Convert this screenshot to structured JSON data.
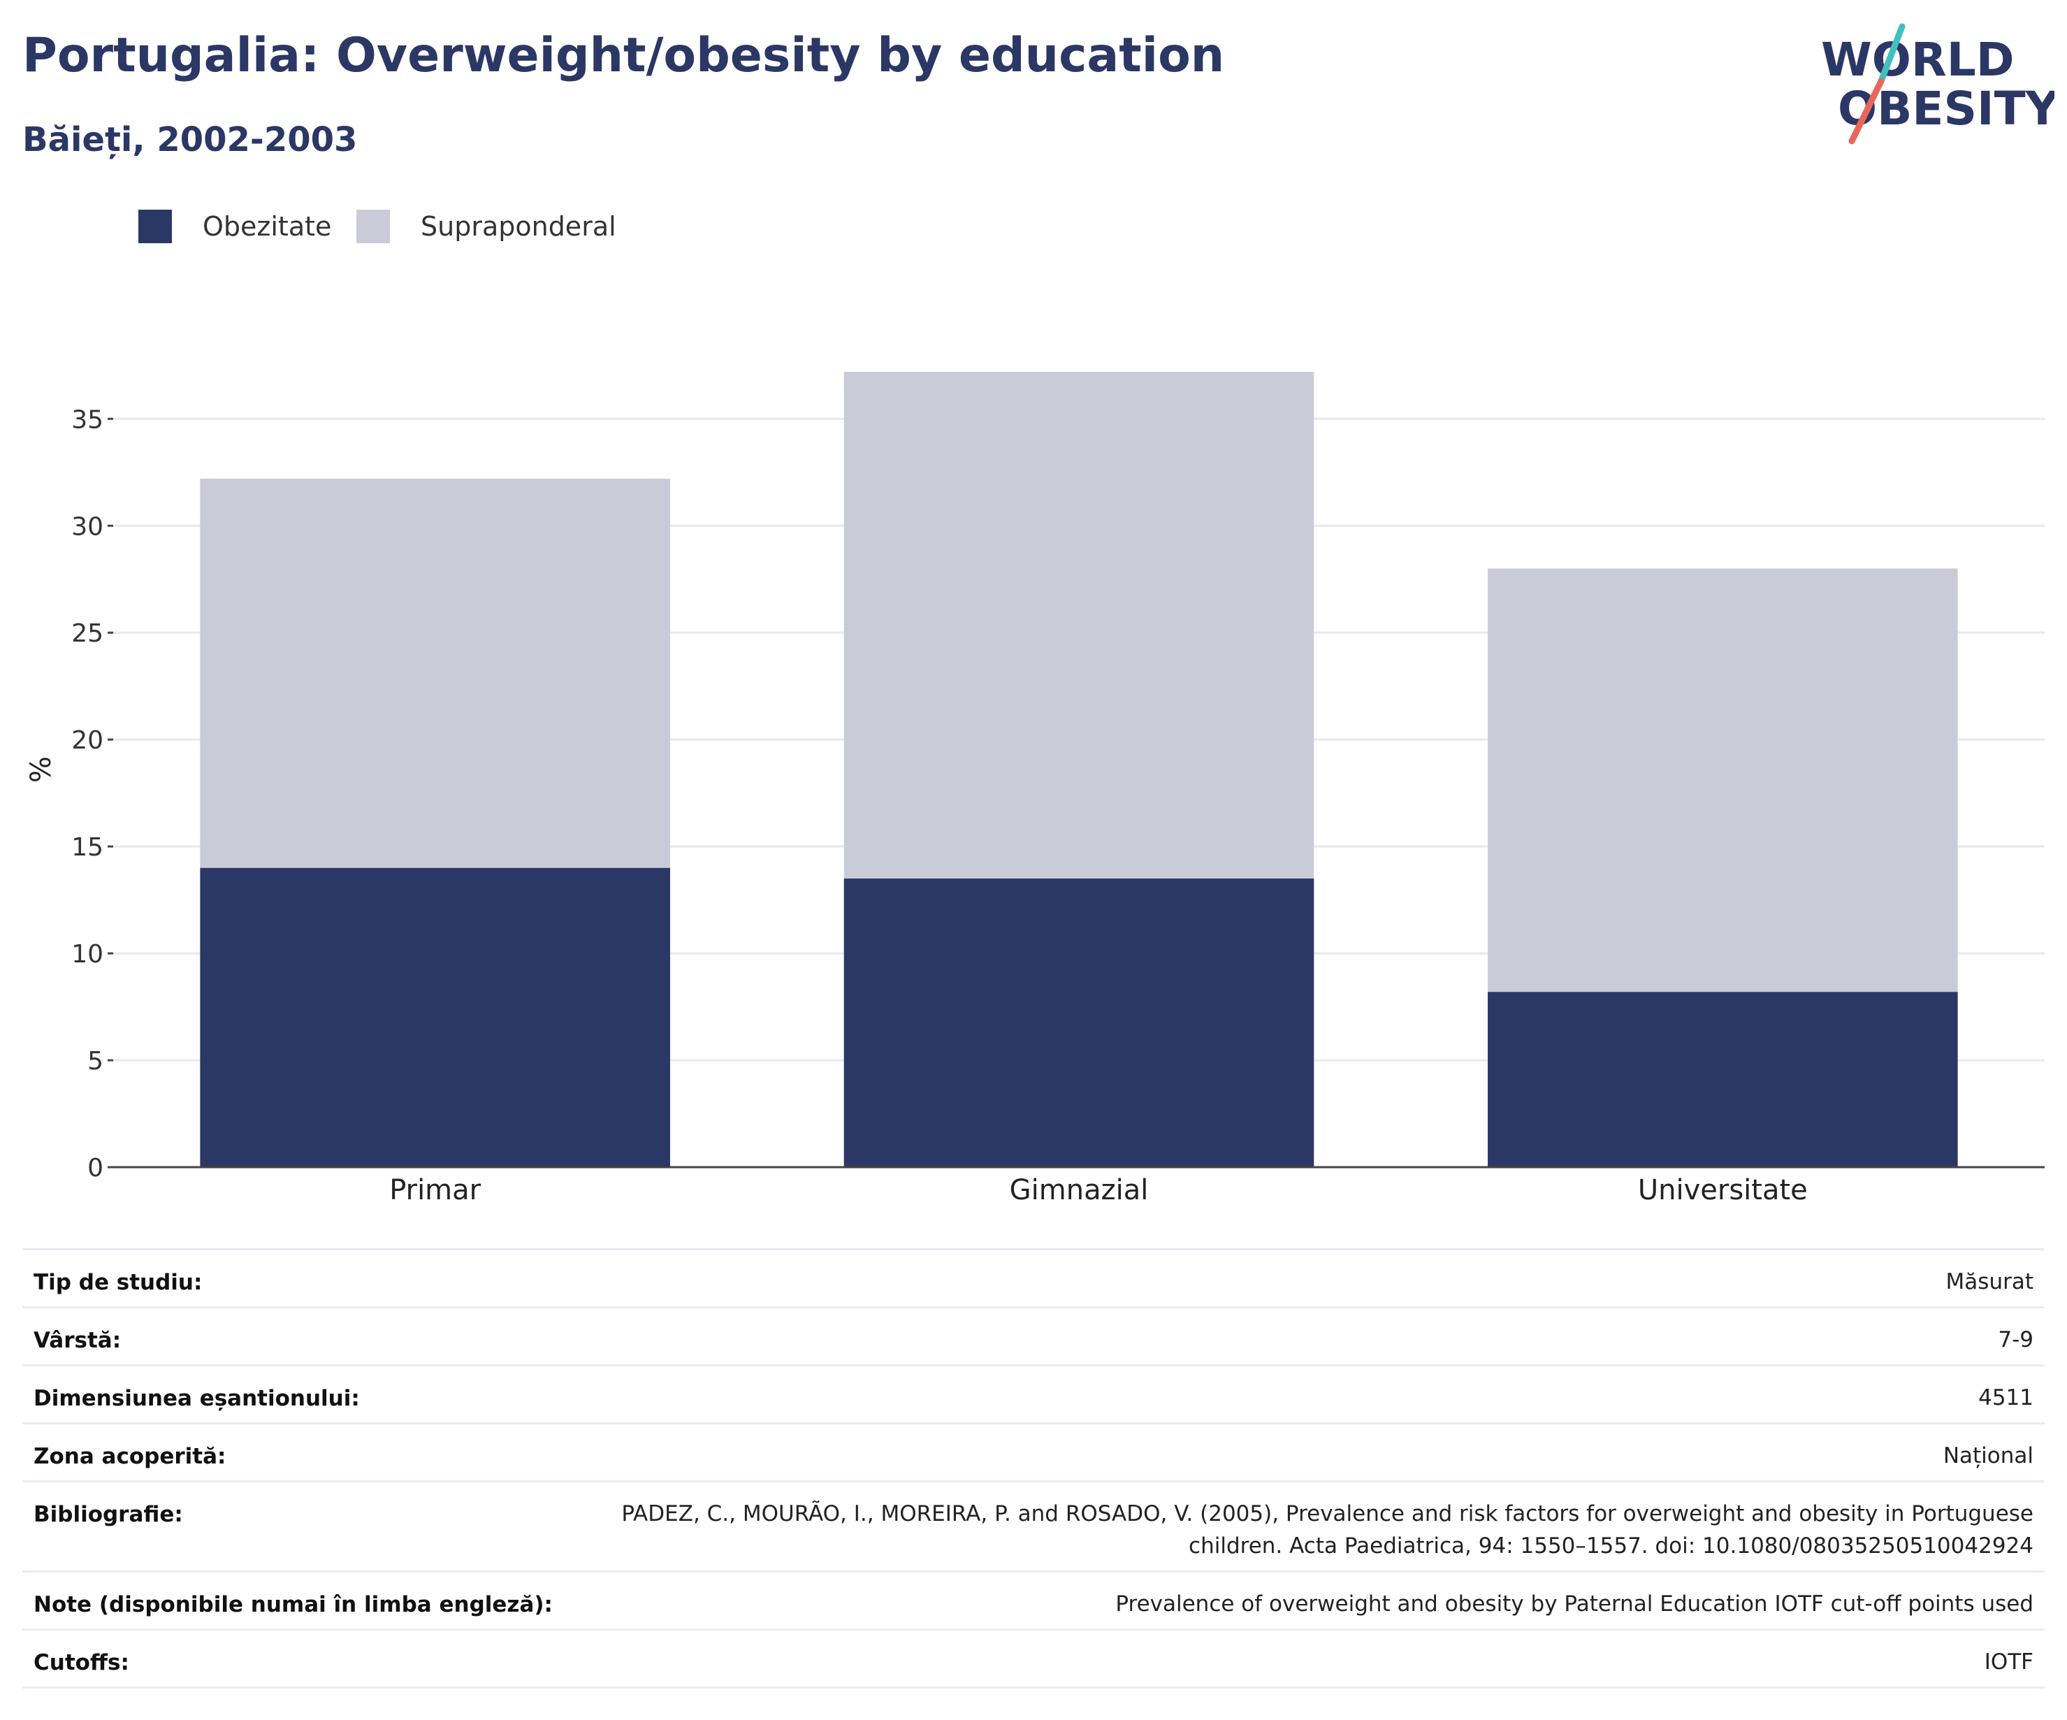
{
  "header": {
    "title": "Portugalia: Overweight/obesity by education",
    "subtitle": "Băieți, 2002-2003"
  },
  "logo": {
    "line1": "WORLD",
    "line2": "OBESITY",
    "slash_colors": [
      "#3fc1c0",
      "#e8675a"
    ],
    "text_color": "#2b3765"
  },
  "legend": {
    "items": [
      {
        "label": "Obezitate",
        "color": "#2b3765"
      },
      {
        "label": "Supraponderal",
        "color": "#c9ccd8"
      }
    ]
  },
  "chart_data": {
    "type": "bar",
    "stacked": true,
    "categories": [
      "Primar",
      "Gimnazial",
      "Universitate"
    ],
    "series": [
      {
        "name": "Obezitate",
        "values": [
          14.0,
          13.5,
          8.2
        ],
        "color": "#2b3765"
      },
      {
        "name": "Supraponderal",
        "values": [
          18.2,
          23.7,
          19.8
        ],
        "color": "#c9ccd8"
      }
    ],
    "ylabel": "%",
    "xlabel": "",
    "ylim": [
      0,
      37.2
    ],
    "yticks": [
      0,
      5,
      10,
      15,
      20,
      25,
      30,
      35
    ],
    "grid": true,
    "legend_position": "top-left"
  },
  "metadata": {
    "rows": [
      {
        "key": "Tip de studiu:",
        "value": "Măsurat"
      },
      {
        "key": "Vârstă:",
        "value": "7-9"
      },
      {
        "key": "Dimensiunea eșantionului:",
        "value": "4511"
      },
      {
        "key": "Zona acoperită:",
        "value": "Național"
      },
      {
        "key": "Bibliografie:",
        "value": "PADEZ, C., MOURÃO, I., MOREIRA, P. and ROSADO, V. (2005), Prevalence and risk factors for overweight and obesity in Portuguese children. Acta Paediatrica, 94: 1550–1557. doi: 10.1080/08035250510042924"
      },
      {
        "key": "Note (disponibile numai în limba engleză):",
        "value": "Prevalence of overweight and obesity by Paternal Education IOTF cut-off points used"
      },
      {
        "key": "Cutoffs:",
        "value": "IOTF"
      }
    ]
  }
}
